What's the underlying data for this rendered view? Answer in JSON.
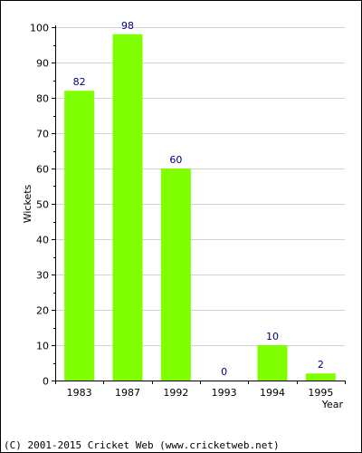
{
  "chart_data": {
    "type": "bar",
    "categories": [
      "1983",
      "1987",
      "1992",
      "1993",
      "1994",
      "1995"
    ],
    "values": [
      82,
      98,
      60,
      0,
      10,
      2
    ],
    "title": "",
    "xlabel": "Year",
    "ylabel": "Wickets",
    "ylim": [
      0,
      100
    ],
    "yticks": [
      0,
      10,
      20,
      30,
      40,
      50,
      60,
      70,
      80,
      90,
      100
    ],
    "grid": true,
    "bar_color": "#7fff00",
    "label_color": "#000080"
  },
  "footer": {
    "copyright": "(C) 2001-2015 Cricket Web (www.cricketweb.net)"
  }
}
